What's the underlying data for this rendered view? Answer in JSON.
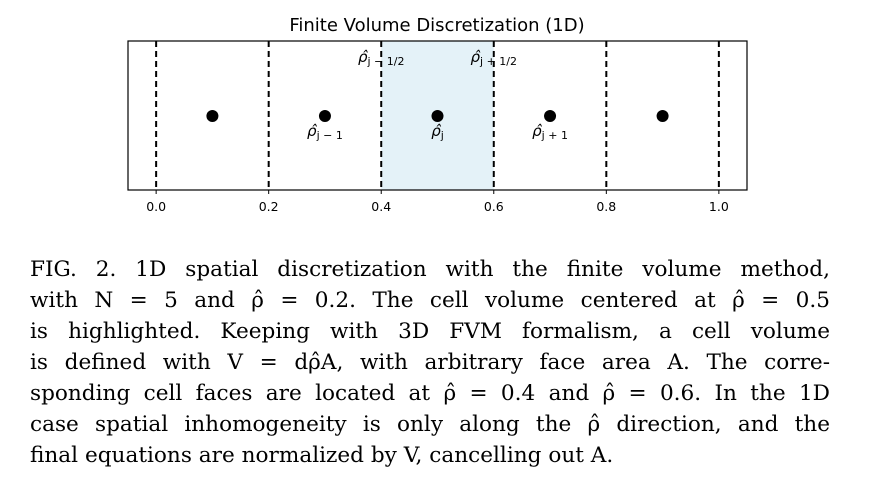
{
  "figure": {
    "title": "Finite Volume Discretization (1D)"
  },
  "chart_data": {
    "type": "scatter",
    "title": "Finite Volume Discretization (1D)",
    "xlabel": "",
    "ylabel": "",
    "xlim": [
      -0.05,
      1.05
    ],
    "x_ticks": [
      0.0,
      0.2,
      0.4,
      0.6,
      0.8,
      1.0
    ],
    "x_tick_labels": [
      "0.0",
      "0.2",
      "0.4",
      "0.6",
      "0.8",
      "1.0"
    ],
    "cell_faces": [
      0.0,
      0.2,
      0.4,
      0.6,
      0.8,
      1.0
    ],
    "cell_centers": [
      0.1,
      0.3,
      0.5,
      0.7,
      0.9
    ],
    "highlighted_cell": [
      0.4,
      0.6
    ],
    "highlight_color": "#e4f2f8",
    "annotations": [
      {
        "id": "rho-j-minus-half",
        "x": 0.4,
        "label": "ρ̂",
        "sub": "j − 1/2",
        "position": "top"
      },
      {
        "id": "rho-j-plus-half",
        "x": 0.6,
        "label": "ρ̂",
        "sub": "j + 1/2",
        "position": "top"
      },
      {
        "id": "rho-j-minus-1",
        "x": 0.3,
        "label": "ρ̂",
        "sub": "j − 1",
        "position": "below-point"
      },
      {
        "id": "rho-j",
        "x": 0.5,
        "label": "ρ̂",
        "sub": "j",
        "position": "below-point"
      },
      {
        "id": "rho-j-plus-1",
        "x": 0.7,
        "label": "ρ̂",
        "sub": "j + 1",
        "position": "below-point"
      }
    ]
  },
  "caption": {
    "lines": [
      "FIG. 2.  1D spatial discretization with the finite volume method,",
      "with N = 5 and ρ̂ = 0.2.  The cell volume centered at ρ̂ = 0.5",
      "is highlighted.  Keeping with 3D FVM formalism, a cell volume",
      "is defined with V = dρ̂A, with arbitrary face area A.  The corre-",
      "sponding cell faces are located at ρ̂ = 0.4 and ρ̂ = 0.6.  In the 1D",
      "case spatial inhomogeneity is only along the ρ̂ direction, and the",
      "final equations are normalized by V, cancelling out A."
    ]
  }
}
